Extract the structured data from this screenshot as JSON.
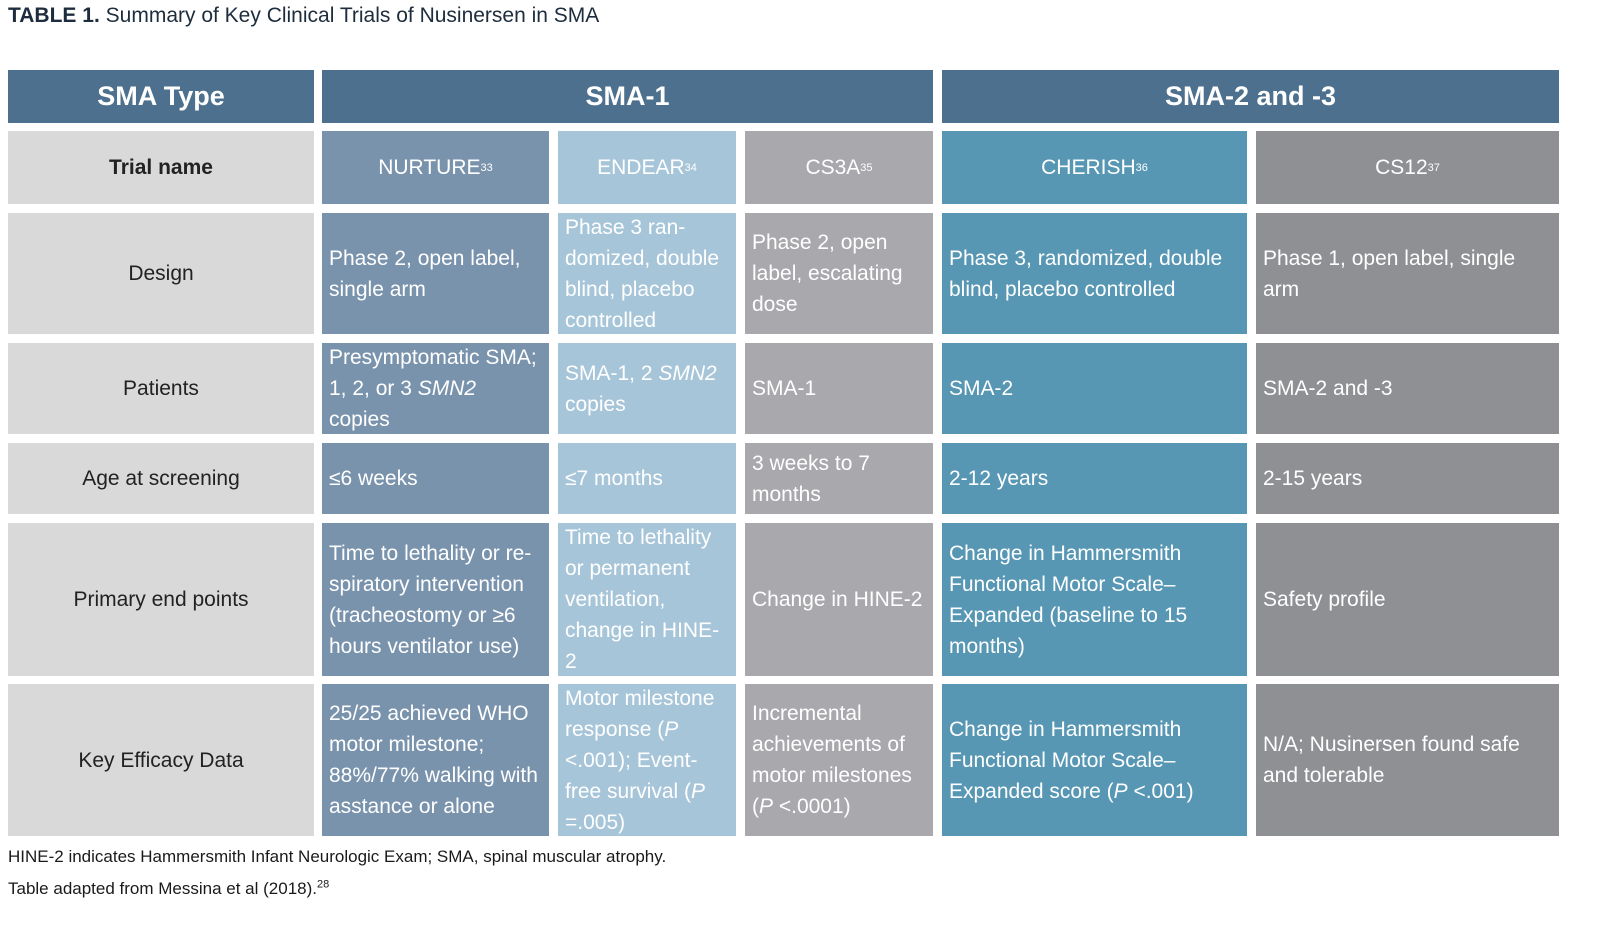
{
  "title": {
    "label": "TABLE 1.",
    "text": "Summary of Key Clinical Trials of Nusinersen in SMA"
  },
  "header": {
    "type": "SMA Type",
    "group1": "SMA-1",
    "group2": "SMA-2 and -3"
  },
  "trials": {
    "row_label": "Trial name",
    "nurture": {
      "name": "NURTURE",
      "ref": "33"
    },
    "endear": {
      "name": "ENDEAR",
      "ref": "34"
    },
    "cs3a": {
      "name": "CS3A",
      "ref": "35"
    },
    "cherish": {
      "name": "CHERISH",
      "ref": "36"
    },
    "cs12": {
      "name": "CS12",
      "ref": "37"
    }
  },
  "rows": {
    "design": {
      "label": "Design",
      "nurture": "Phase 2, open label, single arm",
      "endear": "Phase 3 ran-domized, double blind, placebo controlled",
      "cs3a": "Phase 2, open label, escalating dose",
      "cherish": "Phase 3, randomized, double blind, placebo controlled",
      "cs12": "Phase 1, open label, single arm"
    },
    "patients": {
      "label": "Patients",
      "nurture_a": "Presymptomatic SMA; 1, 2, or 3 ",
      "nurture_gene": "SMN2",
      "nurture_b": " copies",
      "endear_a": "SMA-1,  2 ",
      "endear_gene": "SMN2",
      "endear_b": " copies",
      "cs3a": "SMA-1",
      "cherish": "SMA-2",
      "cs12": "SMA-2 and -3"
    },
    "age": {
      "label": "Age at screening",
      "nurture": "≤6 weeks",
      "endear": "≤7 months",
      "cs3a": "3 weeks to 7 months",
      "cherish": "2-12 years",
      "cs12": "2-15 years"
    },
    "endpoints": {
      "label": "Primary end points",
      "nurture": "Time to lethality or re-spiratory intervention (tracheostomy or ≥6 hours ventilator use)",
      "endear": "Time to lethality or permanent ventilation, change in HINE-2",
      "cs3a": "Change in HINE-2",
      "cherish": "Change in Hammersmith Functional Motor Scale–Expanded (baseline to 15 months)",
      "cs12": "Safety profile"
    },
    "efficacy": {
      "label": "Key Efficacy Data",
      "nurture": "25/25 achieved WHO motor milestone; 88%/77% walking with asstance or alone",
      "endear_a": "Motor milestone response (",
      "endear_p1": "P",
      "endear_b": " <.001); Event-free survival (",
      "endear_p2": "P",
      "endear_c": " =.005)",
      "cs3a_a": "Incremental achievements of motor milestones (",
      "cs3a_p": "P",
      "cs3a_b": " <.0001)",
      "cherish_a": "Change in Hammersmith Functional Motor Scale–Expanded score (",
      "cherish_p": "P",
      "cherish_b": " <.001)",
      "cs12": "N/A; Nusinersen found safe and tolerable"
    }
  },
  "footnotes": {
    "line1": "HINE-2 indicates Hammersmith Infant Neurologic Exam; SMA, spinal muscular atrophy.",
    "line2": "Table adapted from Messina et al (2018).",
    "line2_ref": "28"
  }
}
